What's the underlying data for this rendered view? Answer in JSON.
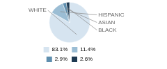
{
  "chart_data": {
    "type": "pie",
    "categories": [
      "WHITE",
      "HISPANIC",
      "ASIAN",
      "BLACK"
    ],
    "values": [
      83.1,
      11.4,
      2.9,
      2.6
    ],
    "value_labels": [
      "83.1%",
      "11.4%",
      "2.9%",
      "2.6%"
    ],
    "colors": [
      "#d6e4f0",
      "#9bbdd4",
      "#5f8faf",
      "#1e3a52"
    ],
    "legend": "bottom"
  }
}
